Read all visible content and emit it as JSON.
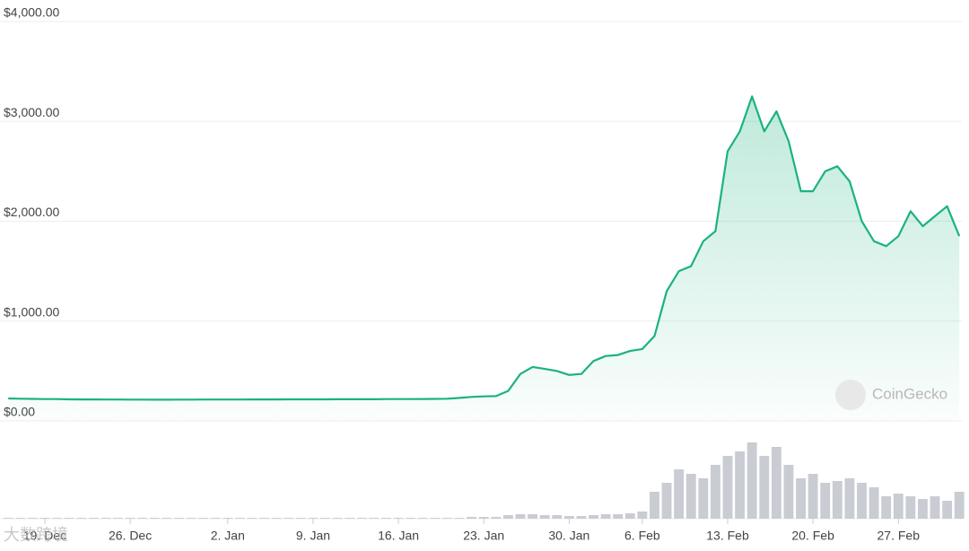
{
  "chart_data": {
    "type": "line",
    "categories": [
      null,
      null,
      null,
      "19. Dec",
      null,
      null,
      null,
      null,
      null,
      null,
      "26. Dec",
      null,
      null,
      null,
      null,
      null,
      null,
      null,
      "2. Jan",
      null,
      null,
      null,
      null,
      null,
      null,
      "9. Jan",
      null,
      null,
      null,
      null,
      null,
      null,
      "16. Jan",
      null,
      null,
      null,
      null,
      null,
      null,
      "23. Jan",
      null,
      null,
      null,
      null,
      null,
      null,
      "30. Jan",
      null,
      null,
      null,
      null,
      null,
      "6. Feb",
      null,
      null,
      null,
      null,
      null,
      null,
      "13. Feb",
      null,
      null,
      null,
      null,
      null,
      null,
      "20. Feb",
      null,
      null,
      null,
      null,
      null,
      null,
      "27. Feb",
      null,
      null,
      null,
      null,
      null
    ],
    "series": [
      {
        "name": "Price",
        "color": "#1bb37c",
        "values": [
          225,
          222,
          220,
          218,
          218,
          216,
          215,
          215,
          214,
          214,
          213,
          213,
          212,
          212,
          213,
          213,
          214,
          214,
          214,
          214,
          215,
          215,
          215,
          216,
          216,
          216,
          216,
          217,
          217,
          217,
          217,
          218,
          218,
          218,
          219,
          220,
          222,
          230,
          240,
          245,
          248,
          300,
          470,
          540,
          520,
          500,
          460,
          470,
          600,
          650,
          660,
          700,
          720,
          850,
          1300,
          1500,
          1550,
          1800,
          1900,
          2700,
          2900,
          3250,
          2900,
          3100,
          2800,
          2300,
          2300,
          2500,
          2550,
          2400,
          2000,
          1800,
          1750,
          1850,
          2100,
          1950,
          2050,
          2150,
          1850
        ]
      },
      {
        "name": "Volume",
        "color": "#c9ccd3",
        "axis": "y2",
        "values": [
          1,
          1,
          1,
          1,
          1,
          1,
          1,
          1,
          1,
          1,
          1,
          1,
          1,
          1,
          1,
          1,
          1,
          1,
          1,
          1,
          1,
          1,
          1,
          1,
          1,
          1,
          1,
          1,
          1,
          1,
          1,
          1,
          1,
          1,
          1,
          1,
          1,
          1,
          2,
          2,
          2,
          4,
          5,
          5,
          4,
          4,
          3,
          3,
          4,
          5,
          5,
          6,
          8,
          30,
          40,
          55,
          50,
          45,
          60,
          70,
          75,
          85,
          70,
          80,
          60,
          45,
          50,
          40,
          42,
          45,
          40,
          35,
          25,
          28,
          25,
          22,
          25,
          20,
          30
        ]
      }
    ],
    "ylim": [
      0,
      4000
    ],
    "yticks": [
      {
        "value": 0,
        "label": "$0.00"
      },
      {
        "value": 1000,
        "label": "$1,000.00"
      },
      {
        "value": 2000,
        "label": "$2,000.00"
      },
      {
        "value": 3000,
        "label": "$3,000.00"
      },
      {
        "value": 4000,
        "label": "$4,000.00"
      }
    ],
    "y2lim": [
      0,
      100
    ],
    "grid": true,
    "watermark": "CoinGecko",
    "overlay_watermark": "大数跨境"
  }
}
